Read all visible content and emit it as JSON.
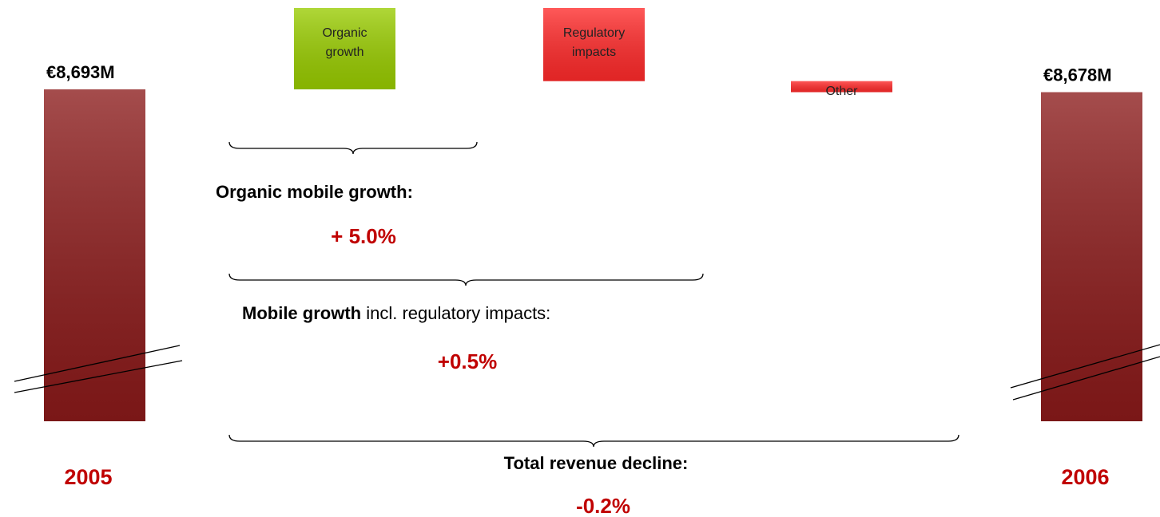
{
  "chart_data": {
    "type": "waterfall",
    "categories": [
      "2005",
      "Organic growth",
      "Regulatory impacts",
      "Other",
      "2006"
    ],
    "values": [
      8693,
      435,
      -391,
      -59,
      8678
    ],
    "value_labels": [
      "€8,693M",
      null,
      null,
      null,
      "€8,678M"
    ],
    "measure": [
      "absolute",
      "relative",
      "relative",
      "relative",
      "absolute"
    ],
    "colors": [
      "#8b1a1a",
      "#99cc00",
      "#ff2a2a",
      "#ff2a2a",
      "#8b1a1a"
    ],
    "ylim": [
      6919,
      9128
    ],
    "y_axis_break": true,
    "annotations": [
      {
        "text": "Organic mobile growth:",
        "value": "+ 5.0%"
      },
      {
        "text_bold": "Mobile growth",
        "text": "incl. regulatory impacts:",
        "value": "+0.5%"
      },
      {
        "text": "Total revenue decline:",
        "value": "-0.2%"
      }
    ]
  }
}
